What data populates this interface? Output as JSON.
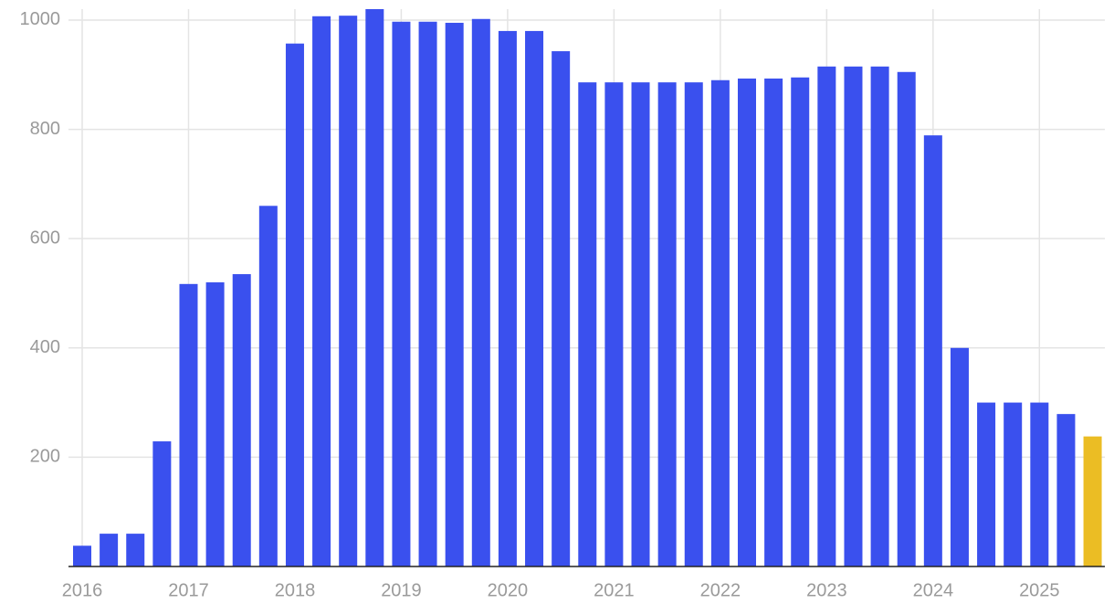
{
  "chart_data": {
    "type": "bar",
    "categories": [
      "2016",
      null,
      null,
      null,
      "2017",
      null,
      null,
      null,
      "2018",
      null,
      null,
      null,
      "2019",
      null,
      null,
      null,
      "2020",
      null,
      null,
      null,
      "2021",
      null,
      null,
      null,
      "2022",
      null,
      null,
      null,
      "2023",
      null,
      null,
      null,
      "2024",
      null,
      null,
      null,
      "2025",
      null,
      null
    ],
    "values": [
      38,
      60,
      60,
      229,
      517,
      520,
      535,
      660,
      957,
      1007,
      1008,
      1020,
      997,
      997,
      995,
      1002,
      980,
      980,
      943,
      886,
      886,
      886,
      886,
      886,
      890,
      893,
      893,
      895,
      915,
      915,
      915,
      905,
      789,
      400,
      300,
      300,
      300,
      279,
      238
    ],
    "colors": [
      "#3a50ee",
      "#3a50ee",
      "#3a50ee",
      "#3a50ee",
      "#3a50ee",
      "#3a50ee",
      "#3a50ee",
      "#3a50ee",
      "#3a50ee",
      "#3a50ee",
      "#3a50ee",
      "#3a50ee",
      "#3a50ee",
      "#3a50ee",
      "#3a50ee",
      "#3a50ee",
      "#3a50ee",
      "#3a50ee",
      "#3a50ee",
      "#3a50ee",
      "#3a50ee",
      "#3a50ee",
      "#3a50ee",
      "#3a50ee",
      "#3a50ee",
      "#3a50ee",
      "#3a50ee",
      "#3a50ee",
      "#3a50ee",
      "#3a50ee",
      "#3a50ee",
      "#3a50ee",
      "#3a50ee",
      "#3a50ee",
      "#3a50ee",
      "#3a50ee",
      "#3a50ee",
      "#3a50ee",
      "#ebbd24"
    ],
    "ylim": [
      0,
      1020
    ],
    "yticks": [
      200,
      400,
      600,
      800,
      1000
    ],
    "grid": true
  }
}
